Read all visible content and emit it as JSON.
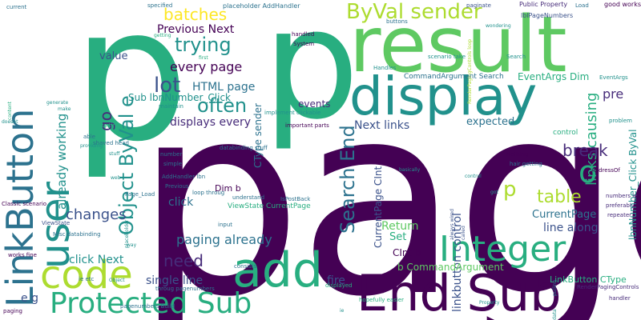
{
  "palette": {
    "dark_purple": "#440154",
    "indigo": "#472c7a",
    "blue": "#3b528b",
    "steel": "#2c728e",
    "teal": "#21918c",
    "sea": "#28ae80",
    "green": "#5ec962",
    "lime": "#addc30",
    "yellow": "#fde725"
  },
  "words": [
    {
      "text": "page"
    },
    {
      "text": "p"
    },
    {
      "text": "p"
    },
    {
      "text": "result"
    },
    {
      "text": "display"
    },
    {
      "text": "add"
    },
    {
      "text": "End Sub"
    },
    {
      "text": "code"
    },
    {
      "text": "Integer"
    },
    {
      "text": "Protected Sub"
    },
    {
      "text": "LinkButton"
    },
    {
      "text": "user"
    },
    {
      "text": "ByVal sender"
    },
    {
      "text": "Object ByVal e"
    },
    {
      "text": "batches"
    },
    {
      "text": "trying"
    },
    {
      "text": "lot"
    },
    {
      "text": "often"
    },
    {
      "text": "every page"
    },
    {
      "text": "Previous Next"
    },
    {
      "text": "value"
    },
    {
      "text": "HTML page"
    },
    {
      "text": "already working"
    },
    {
      "text": "Sub lbnNumber_Click"
    },
    {
      "text": "changes"
    },
    {
      "text": "go"
    },
    {
      "text": "displays every"
    },
    {
      "text": "click"
    },
    {
      "text": "Dim b"
    },
    {
      "text": "paging already"
    },
    {
      "text": "need"
    },
    {
      "text": "single line"
    },
    {
      "text": "click Next"
    },
    {
      "text": "e g"
    },
    {
      "text": "Search End"
    },
    {
      "text": "Next links"
    },
    {
      "text": "events"
    },
    {
      "text": "expected"
    },
    {
      "text": "links causing"
    },
    {
      "text": "break"
    },
    {
      "text": "o"
    },
    {
      "text": "pre"
    },
    {
      "text": "table"
    },
    {
      "text": "p"
    },
    {
      "text": "CurrentPage"
    },
    {
      "text": "line along"
    },
    {
      "text": "Return"
    },
    {
      "text": "Set"
    },
    {
      "text": "CInt b"
    },
    {
      "text": "fire"
    },
    {
      "text": "linkbutton control"
    },
    {
      "text": "LinkButton CType"
    },
    {
      "text": "b CommandArgument"
    },
    {
      "text": "EventArgs Dim"
    },
    {
      "text": "CommandArgument Search"
    },
    {
      "text": "CType sender"
    },
    {
      "text": "ViewState CurrentPage"
    },
    {
      "text": "CurrentPage CInt"
    },
    {
      "text": "lbnNumber_Click ByVal"
    },
    {
      "text": "placeholder AddHandler"
    },
    {
      "text": "Public Property"
    },
    {
      "text": "good works"
    },
    {
      "text": "lblPageNumbers"
    },
    {
      "text": "specified"
    },
    {
      "text": "paginate"
    },
    {
      "text": "buttons"
    },
    {
      "text": "current"
    },
    {
      "text": "handled"
    },
    {
      "text": "System"
    },
    {
      "text": "Load"
    },
    {
      "text": "Handles"
    },
    {
      "text": "scenario take"
    },
    {
      "text": "EventArgs"
    },
    {
      "text": "Search"
    },
    {
      "text": "implement clickable"
    },
    {
      "text": "maintain"
    },
    {
      "text": "runtime"
    },
    {
      "text": "important parts"
    },
    {
      "text": "control"
    },
    {
      "text": "problem"
    },
    {
      "text": "Nothing"
    },
    {
      "text": "hair getting"
    },
    {
      "text": "pseudo"
    },
    {
      "text": "AddressOf"
    },
    {
      "text": "number"
    },
    {
      "text": "simple"
    },
    {
      "text": "databinding stuff"
    },
    {
      "text": "AddHandler lbn"
    },
    {
      "text": "Previous"
    },
    {
      "text": "loop throug"
    },
    {
      "text": "IsPostBack"
    },
    {
      "text": "Classic scenario"
    },
    {
      "text": "Misc databinding"
    },
    {
      "text": "ViewState"
    },
    {
      "text": "Page_Load"
    },
    {
      "text": "understand"
    },
    {
      "text": "input"
    },
    {
      "text": "shaved head"
    },
    {
      "text": "able"
    },
    {
      "text": "numbers ie"
    },
    {
      "text": "preferably"
    },
    {
      "text": "repeater"
    },
    {
      "text": "RenderPagingControls"
    },
    {
      "text": "handler"
    },
    {
      "text": "placeholder"
    },
    {
      "text": "consists"
    },
    {
      "text": "throug pagenumbers"
    },
    {
      "text": "displayed"
    },
    {
      "text": "pagenumbers Build"
    },
    {
      "text": "ie etc"
    },
    {
      "text": "pulling"
    },
    {
      "text": "always wired"
    },
    {
      "text": "called"
    },
    {
      "text": "hopefully easier"
    },
    {
      "text": "works fine"
    },
    {
      "text": "paging"
    },
    {
      "text": "getting"
    },
    {
      "text": "first"
    },
    {
      "text": "content"
    },
    {
      "text": "make"
    },
    {
      "text": "generate"
    },
    {
      "text": "doesnt"
    },
    {
      "text": "providing"
    },
    {
      "text": "stuff"
    },
    {
      "text": "web"
    },
    {
      "text": "way"
    },
    {
      "text": "got"
    },
    {
      "text": "Property"
    },
    {
      "text": "ie"
    },
    {
      "text": "Object"
    },
    {
      "text": "data"
    },
    {
      "text": "basically"
    },
    {
      "text": "RenderPagingControls loop"
    },
    {
      "text": "wondering"
    },
    {
      "text": "control"
    }
  ]
}
